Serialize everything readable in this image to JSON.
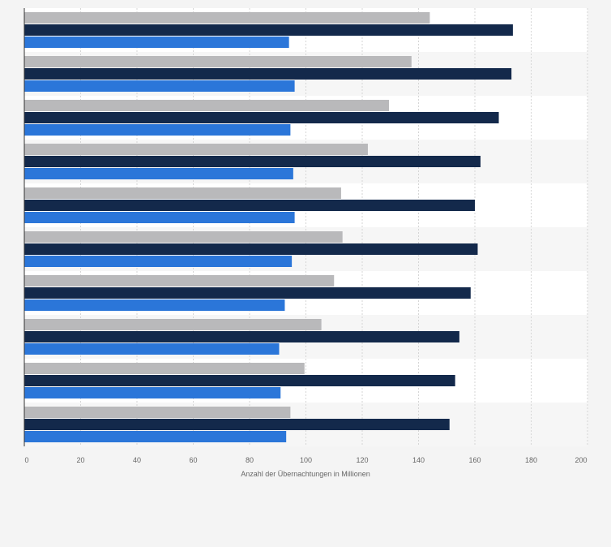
{
  "chart_data": {
    "type": "bar",
    "orientation": "horizontal",
    "categories": [
      "",
      "",
      "",
      "",
      "",
      "",
      "",
      "",
      "",
      ""
    ],
    "series": [
      {
        "values": [
          144,
          137.5,
          129.5,
          122,
          112.5,
          113,
          110,
          105.5,
          99.5,
          94.5
        ],
        "color": "#b9b9bb"
      },
      {
        "values": [
          173.5,
          173,
          168.5,
          162,
          160,
          161,
          158.5,
          154.5,
          153,
          151
        ],
        "color": "#13294b"
      },
      {
        "values": [
          94,
          96,
          94.5,
          95.5,
          96,
          95,
          92.5,
          90.5,
          91,
          93
        ],
        "color": "#2b76d9"
      }
    ],
    "xlabel": "Anzahl der Übernachtungen in Millionen",
    "ylabel": "",
    "xlim": [
      0,
      200
    ],
    "xticks": [
      "0",
      "20",
      "40",
      "60",
      "80",
      "100",
      "120",
      "140",
      "160",
      "180",
      "200"
    ],
    "grid": true,
    "legend": "none"
  }
}
